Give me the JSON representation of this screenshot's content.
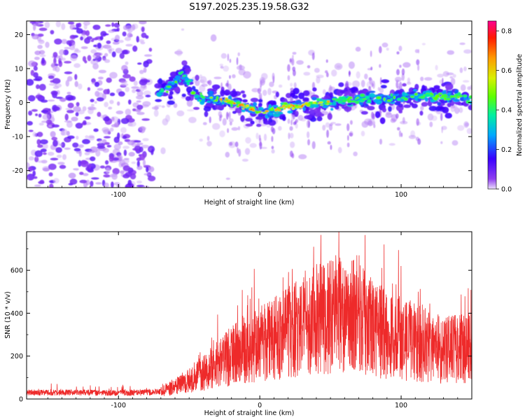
{
  "title": "S197.2025.235.19.58.G32",
  "chart_data": [
    {
      "type": "heatmap",
      "xlabel": "Height of straight line (km)",
      "ylabel": "Frequency (Hz)",
      "xlim": [
        -165,
        150
      ],
      "ylim": [
        -25,
        24
      ],
      "xticks": [
        -100,
        0,
        100
      ],
      "yticks": [
        -20,
        -10,
        0,
        10,
        20
      ],
      "colorbar": {
        "label": "Normalized spectral amplitude",
        "range": [
          0.0,
          0.85
        ],
        "ticks": [
          0.0,
          0.2,
          0.4,
          0.6,
          0.8
        ],
        "tick_labels": [
          "0.0",
          "0.2",
          "0.4",
          "0.6",
          "0.8"
        ],
        "colors": [
          "#ece0fb",
          "#8f3ff0",
          "#3a00ff",
          "#00a8ff",
          "#00f0a0",
          "#5dff00",
          "#d8f000",
          "#ff9a00",
          "#ff1a00",
          "#ff0090"
        ]
      },
      "ridge": {
        "x": [
          -72,
          -62,
          -55,
          -50,
          -45,
          -38,
          -30,
          -20,
          -12,
          0,
          10,
          20,
          30,
          40,
          50,
          60,
          70,
          80,
          90,
          100,
          110,
          120,
          130,
          140,
          148
        ],
        "y": [
          3,
          5,
          9,
          6,
          2,
          1,
          1,
          0,
          -1,
          -3,
          -2,
          -1,
          -1,
          0,
          0,
          1,
          1,
          1,
          1,
          1,
          2,
          2,
          2,
          2,
          1
        ]
      },
      "noise_region_x": [
        -165,
        -76
      ]
    },
    {
      "type": "line",
      "xlabel": "Height of straight line (km)",
      "ylabel": "SNR (10 * v/v)",
      "xlim": [
        -165,
        150
      ],
      "ylim": [
        0,
        780
      ],
      "xticks": [
        -100,
        0,
        100
      ],
      "yticks": [
        0,
        200,
        400,
        600
      ],
      "color": "#ee2a2a",
      "envelope": {
        "x": [
          -165,
          -130,
          -100,
          -80,
          -70,
          -60,
          -50,
          -40,
          -30,
          -20,
          -10,
          0,
          10,
          20,
          30,
          40,
          50,
          60,
          70,
          80,
          90,
          100,
          110,
          120,
          130,
          140,
          150
        ],
        "y": [
          30,
          30,
          28,
          30,
          35,
          55,
          90,
          120,
          160,
          200,
          240,
          260,
          280,
          310,
          340,
          370,
          380,
          380,
          390,
          330,
          300,
          280,
          270,
          250,
          230,
          230,
          240
        ]
      }
    }
  ]
}
